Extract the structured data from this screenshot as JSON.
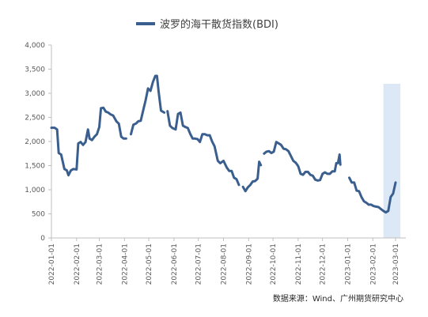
{
  "legend": {
    "label": "波罗的海干散货指数(BDI)",
    "color": "#3a5f8f"
  },
  "source": "数据来源：Wind、广州期货研究中心",
  "chart_data": {
    "type": "line",
    "series": [
      {
        "name": "波罗的海干散货指数(BDI)",
        "color": "#3a5f8f",
        "segments": [
          [
            [
              "2022-01-01",
              2285
            ],
            [
              "2022-01-05",
              2285
            ],
            [
              "2022-01-08",
              2250
            ],
            [
              "2022-01-10",
              1760
            ],
            [
              "2022-01-13",
              1730
            ],
            [
              "2022-01-17",
              1430
            ],
            [
              "2022-01-20",
              1400
            ],
            [
              "2022-01-22",
              1300
            ],
            [
              "2022-01-25",
              1400
            ],
            [
              "2022-01-28",
              1430
            ],
            [
              "2022-02-01",
              1420
            ],
            [
              "2022-02-03",
              1960
            ],
            [
              "2022-02-06",
              1990
            ],
            [
              "2022-02-09",
              1930
            ],
            [
              "2022-02-12",
              1990
            ],
            [
              "2022-02-15",
              2250
            ],
            [
              "2022-02-17",
              2060
            ],
            [
              "2022-02-20",
              2030
            ],
            [
              "2022-02-23",
              2100
            ],
            [
              "2022-02-26",
              2150
            ],
            [
              "2022-03-01",
              2300
            ],
            [
              "2022-03-03",
              2690
            ],
            [
              "2022-03-06",
              2700
            ],
            [
              "2022-03-09",
              2620
            ],
            [
              "2022-03-12",
              2600
            ],
            [
              "2022-03-15",
              2560
            ],
            [
              "2022-03-18",
              2540
            ],
            [
              "2022-03-22",
              2420
            ],
            [
              "2022-03-25",
              2370
            ],
            [
              "2022-03-28",
              2100
            ],
            [
              "2022-03-31",
              2060
            ],
            [
              "2022-04-03",
              2060
            ]
          ],
          [
            [
              "2022-04-09",
              2150
            ],
            [
              "2022-04-12",
              2350
            ],
            [
              "2022-04-15",
              2370
            ],
            [
              "2022-04-18",
              2420
            ],
            [
              "2022-04-21",
              2430
            ],
            [
              "2022-04-24",
              2640
            ],
            [
              "2022-04-27",
              2850
            ],
            [
              "2022-04-30",
              3100
            ],
            [
              "2022-05-03",
              3050
            ],
            [
              "2022-05-06",
              3230
            ],
            [
              "2022-05-09",
              3360
            ],
            [
              "2022-05-11",
              3360
            ],
            [
              "2022-05-13",
              3050
            ],
            [
              "2022-05-16",
              2640
            ],
            [
              "2022-05-18",
              2620
            ],
            [
              "2022-05-20",
              2600
            ]
          ],
          [
            [
              "2022-05-24",
              2630
            ],
            [
              "2022-05-27",
              2330
            ],
            [
              "2022-05-30",
              2280
            ],
            [
              "2022-06-03",
              2250
            ],
            [
              "2022-06-06",
              2570
            ],
            [
              "2022-06-09",
              2600
            ],
            [
              "2022-06-12",
              2330
            ],
            [
              "2022-06-15",
              2300
            ],
            [
              "2022-06-18",
              2280
            ],
            [
              "2022-06-21",
              2160
            ],
            [
              "2022-06-24",
              2060
            ],
            [
              "2022-06-27",
              2060
            ],
            [
              "2022-06-30",
              2050
            ],
            [
              "2022-07-03",
              1990
            ],
            [
              "2022-07-06",
              2150
            ],
            [
              "2022-07-09",
              2150
            ],
            [
              "2022-07-12",
              2130
            ],
            [
              "2022-07-15",
              2130
            ],
            [
              "2022-07-18",
              2000
            ],
            [
              "2022-07-21",
              1900
            ],
            [
              "2022-07-25",
              1600
            ],
            [
              "2022-07-28",
              1550
            ],
            [
              "2022-08-01",
              1600
            ],
            [
              "2022-08-05",
              1460
            ],
            [
              "2022-08-08",
              1390
            ],
            [
              "2022-08-11",
              1390
            ],
            [
              "2022-08-14",
              1250
            ],
            [
              "2022-08-17",
              1220
            ],
            [
              "2022-08-20",
              1100
            ]
          ],
          [
            [
              "2022-08-25",
              1060
            ],
            [
              "2022-08-28",
              970
            ],
            [
              "2022-08-31",
              1050
            ],
            [
              "2022-09-03",
              1100
            ],
            [
              "2022-09-06",
              1170
            ],
            [
              "2022-09-09",
              1180
            ],
            [
              "2022-09-12",
              1230
            ],
            [
              "2022-09-14",
              1580
            ],
            [
              "2022-09-16",
              1510
            ]
          ],
          [
            [
              "2022-09-20",
              1750
            ],
            [
              "2022-09-23",
              1790
            ],
            [
              "2022-09-26",
              1800
            ],
            [
              "2022-09-29",
              1760
            ],
            [
              "2022-10-02",
              1790
            ],
            [
              "2022-10-05",
              1990
            ],
            [
              "2022-10-08",
              1960
            ],
            [
              "2022-10-11",
              1930
            ],
            [
              "2022-10-14",
              1850
            ],
            [
              "2022-10-17",
              1840
            ],
            [
              "2022-10-20",
              1800
            ],
            [
              "2022-10-23",
              1700
            ],
            [
              "2022-10-26",
              1600
            ],
            [
              "2022-10-29",
              1560
            ],
            [
              "2022-11-01",
              1490
            ],
            [
              "2022-11-04",
              1330
            ],
            [
              "2022-11-07",
              1310
            ],
            [
              "2022-11-10",
              1370
            ],
            [
              "2022-11-13",
              1370
            ],
            [
              "2022-11-16",
              1310
            ],
            [
              "2022-11-19",
              1290
            ],
            [
              "2022-11-22",
              1210
            ],
            [
              "2022-11-25",
              1190
            ],
            [
              "2022-11-28",
              1200
            ],
            [
              "2022-12-01",
              1330
            ],
            [
              "2022-12-04",
              1360
            ],
            [
              "2022-12-07",
              1330
            ],
            [
              "2022-12-10",
              1330
            ],
            [
              "2022-12-13",
              1380
            ],
            [
              "2022-12-16",
              1380
            ],
            [
              "2022-12-18",
              1550
            ],
            [
              "2022-12-20",
              1550
            ],
            [
              "2022-12-22",
              1730
            ],
            [
              "2022-12-23",
              1520
            ]
          ],
          [
            [
              "2023-01-03",
              1250
            ],
            [
              "2023-01-06",
              1150
            ],
            [
              "2023-01-09",
              1150
            ],
            [
              "2023-01-12",
              980
            ],
            [
              "2023-01-15",
              970
            ],
            [
              "2023-01-18",
              850
            ],
            [
              "2023-01-21",
              760
            ],
            [
              "2023-01-24",
              730
            ],
            [
              "2023-01-27",
              690
            ],
            [
              "2023-01-30",
              690
            ],
            [
              "2023-02-02",
              660
            ],
            [
              "2023-02-05",
              650
            ],
            [
              "2023-02-08",
              640
            ],
            [
              "2023-02-11",
              600
            ],
            [
              "2023-02-14",
              560
            ],
            [
              "2023-02-17",
              530
            ],
            [
              "2023-02-20",
              560
            ],
            [
              "2023-02-23",
              850
            ],
            [
              "2023-02-26",
              920
            ],
            [
              "2023-03-01",
              1150
            ]
          ]
        ]
      }
    ],
    "x_ticks": [
      "2022-01-01",
      "2022-02-01",
      "2022-03-01",
      "2022-04-01",
      "2022-05-01",
      "2022-06-01",
      "2022-07-01",
      "2022-08-01",
      "2022-09-01",
      "2022-10-01",
      "2022-11-01",
      "2022-12-01",
      "2023-01-01",
      "2023-02-01",
      "2023-03-01"
    ],
    "y_ticks": [
      0,
      500,
      1000,
      1500,
      2000,
      2500,
      3000,
      3500,
      4000
    ],
    "y_tick_labels": [
      "0",
      "500",
      "1,000",
      "1,500",
      "2,000",
      "2,500",
      "3,000",
      "3,500",
      "4,000"
    ],
    "ylim": [
      0,
      4000
    ],
    "xlim": [
      "2022-01-01",
      "2023-03-01"
    ],
    "grid": false,
    "legend_position": "top",
    "highlight_region": {
      "from": "2023-02-14",
      "to": "2023-03-07",
      "color": "#dce8f5"
    }
  }
}
